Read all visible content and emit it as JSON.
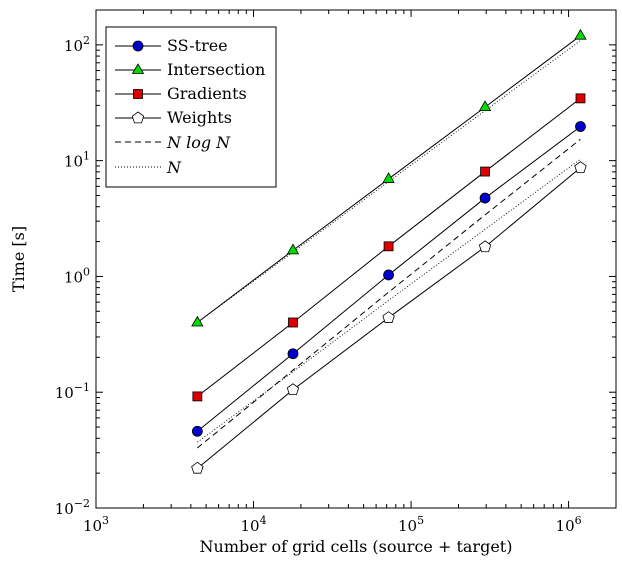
{
  "chart_data": {
    "type": "line",
    "xlabel": "Number of grid cells (source + target)",
    "ylabel": "Time [s]",
    "xscale": "log",
    "yscale": "log",
    "xlim": [
      1000,
      2000000
    ],
    "ylim": [
      0.01,
      200
    ],
    "x_ticks": [
      {
        "value": 1000,
        "base": "10",
        "exp": "3"
      },
      {
        "value": 10000,
        "base": "10",
        "exp": "4"
      },
      {
        "value": 100000,
        "base": "10",
        "exp": "5"
      },
      {
        "value": 1000000,
        "base": "10",
        "exp": "6"
      }
    ],
    "y_ticks": [
      {
        "value": 0.01,
        "base": "10",
        "exp": "−2"
      },
      {
        "value": 0.1,
        "base": "10",
        "exp": "−1"
      },
      {
        "value": 1,
        "base": "10",
        "exp": "0"
      },
      {
        "value": 10,
        "base": "10",
        "exp": "1"
      },
      {
        "value": 100,
        "base": "10",
        "exp": "2"
      }
    ],
    "grid": false,
    "legend_position": "top-left",
    "x": [
      4400,
      17800,
      72000,
      295000,
      1190000
    ],
    "series": [
      {
        "name": "SS-tree",
        "marker": "circle",
        "color": "#0000cc",
        "style": "solid",
        "values": [
          0.046,
          0.215,
          1.03,
          4.75,
          19.7
        ]
      },
      {
        "name": "Intersection",
        "marker": "triangle",
        "color": "#00dd00",
        "style": "solid",
        "values": [
          0.4,
          1.68,
          6.95,
          29.0,
          120
        ]
      },
      {
        "name": "Gradients",
        "marker": "square",
        "color": "#dd0000",
        "style": "solid",
        "values": [
          0.092,
          0.4,
          1.82,
          8.05,
          34.5
        ]
      },
      {
        "name": "Weights",
        "marker": "pentagon",
        "color": "#ffffff",
        "style": "solid",
        "values": [
          0.022,
          0.105,
          0.44,
          1.8,
          8.7
        ]
      },
      {
        "name": "N log N",
        "marker": "none",
        "color": "#000000",
        "style": "dashed",
        "values": [
          0.033,
          0.155,
          0.73,
          3.4,
          15.3
        ]
      },
      {
        "name": "N",
        "marker": "none",
        "color": "#000000",
        "style": "dotted",
        "values": [
          0.037,
          0.15,
          0.62,
          2.55,
          10.3
        ]
      },
      {
        "name": "N",
        "marker": "none",
        "color": "#000000",
        "style": "dotted",
        "values": [
          0.4,
          1.62,
          6.6,
          27.0,
          109
        ]
      }
    ]
  }
}
